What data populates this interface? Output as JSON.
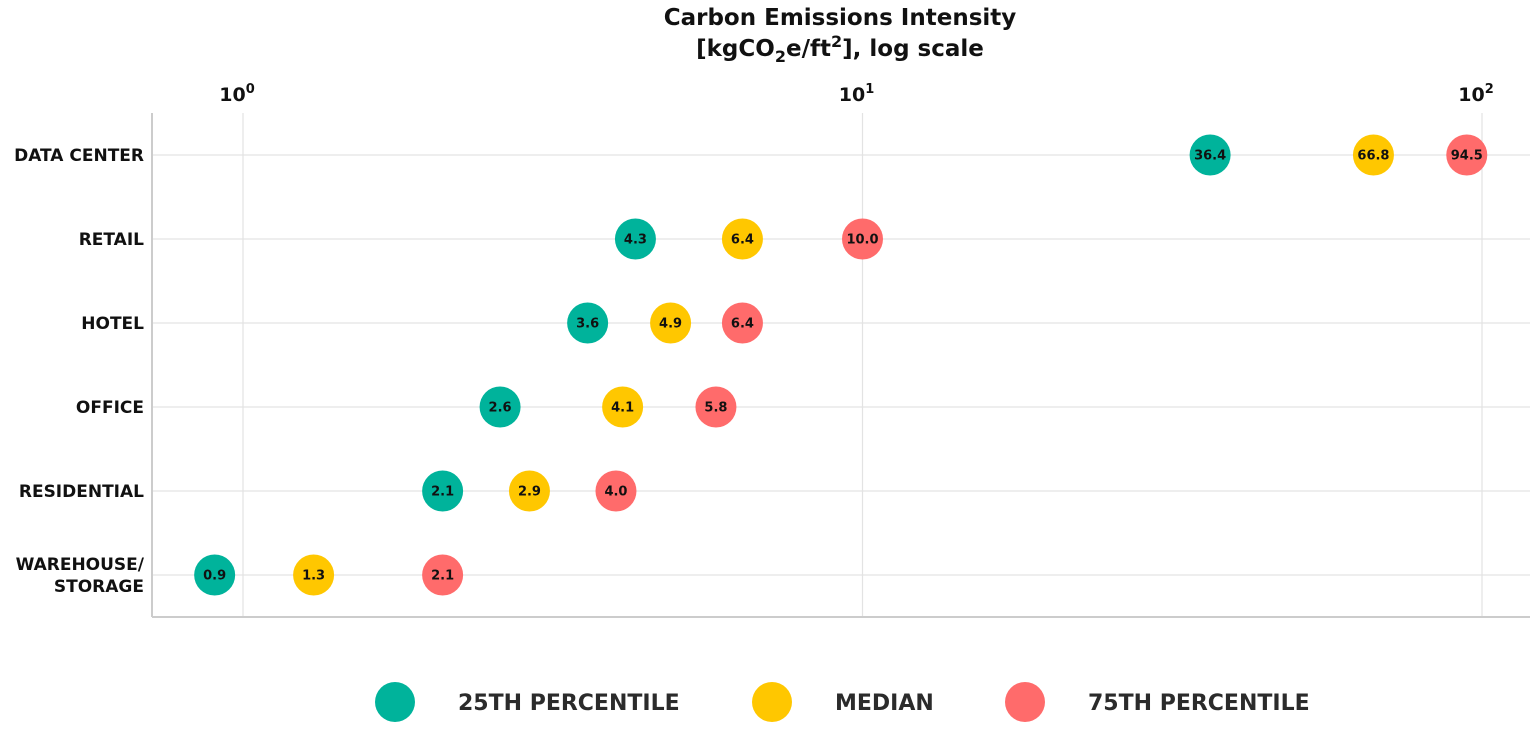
{
  "chart_data": {
    "type": "scatter",
    "title_line1": "Carbon Emissions Intensity",
    "title_line2_parts": [
      "[kgCO",
      "2",
      "e/ft",
      "2",
      "], log scale"
    ],
    "xscale": "log",
    "xlim": [
      0.86,
      117
    ],
    "x_ticks": [
      {
        "value": 1,
        "base": "10",
        "exp": "0"
      },
      {
        "value": 10,
        "base": "10",
        "exp": "1"
      },
      {
        "value": 100,
        "base": "10",
        "exp": "2"
      }
    ],
    "grid": true,
    "x_axis_position": "top",
    "categories": [
      {
        "lines": [
          "DATA CENTER"
        ]
      },
      {
        "lines": [
          "RETAIL"
        ]
      },
      {
        "lines": [
          "HOTEL"
        ]
      },
      {
        "lines": [
          "OFFICE"
        ]
      },
      {
        "lines": [
          "RESIDENTIAL"
        ]
      },
      {
        "lines": [
          "WAREHOUSE/",
          "STORAGE"
        ]
      }
    ],
    "series": [
      {
        "name": "25TH PERCENTILE",
        "color": "#00B39B",
        "values": [
          36.4,
          4.3,
          3.6,
          2.6,
          2.1,
          0.9
        ],
        "labels": [
          "36.4",
          "4.3",
          "3.6",
          "2.6",
          "2.1",
          "0.9"
        ]
      },
      {
        "name": "MEDIAN",
        "color": "#FFC700",
        "values": [
          66.8,
          6.4,
          4.9,
          4.1,
          2.9,
          1.3
        ],
        "labels": [
          "66.8",
          "6.4",
          "4.9",
          "4.1",
          "2.9",
          "1.3"
        ]
      },
      {
        "name": "75TH PERCENTILE",
        "color": "#FF6B6B",
        "values": [
          94.5,
          10.0,
          6.4,
          5.8,
          4.0,
          2.1
        ],
        "labels": [
          "94.5",
          "10.0",
          "6.4",
          "5.8",
          "4.0",
          "2.1"
        ]
      }
    ],
    "legend_position": "bottom-center"
  }
}
